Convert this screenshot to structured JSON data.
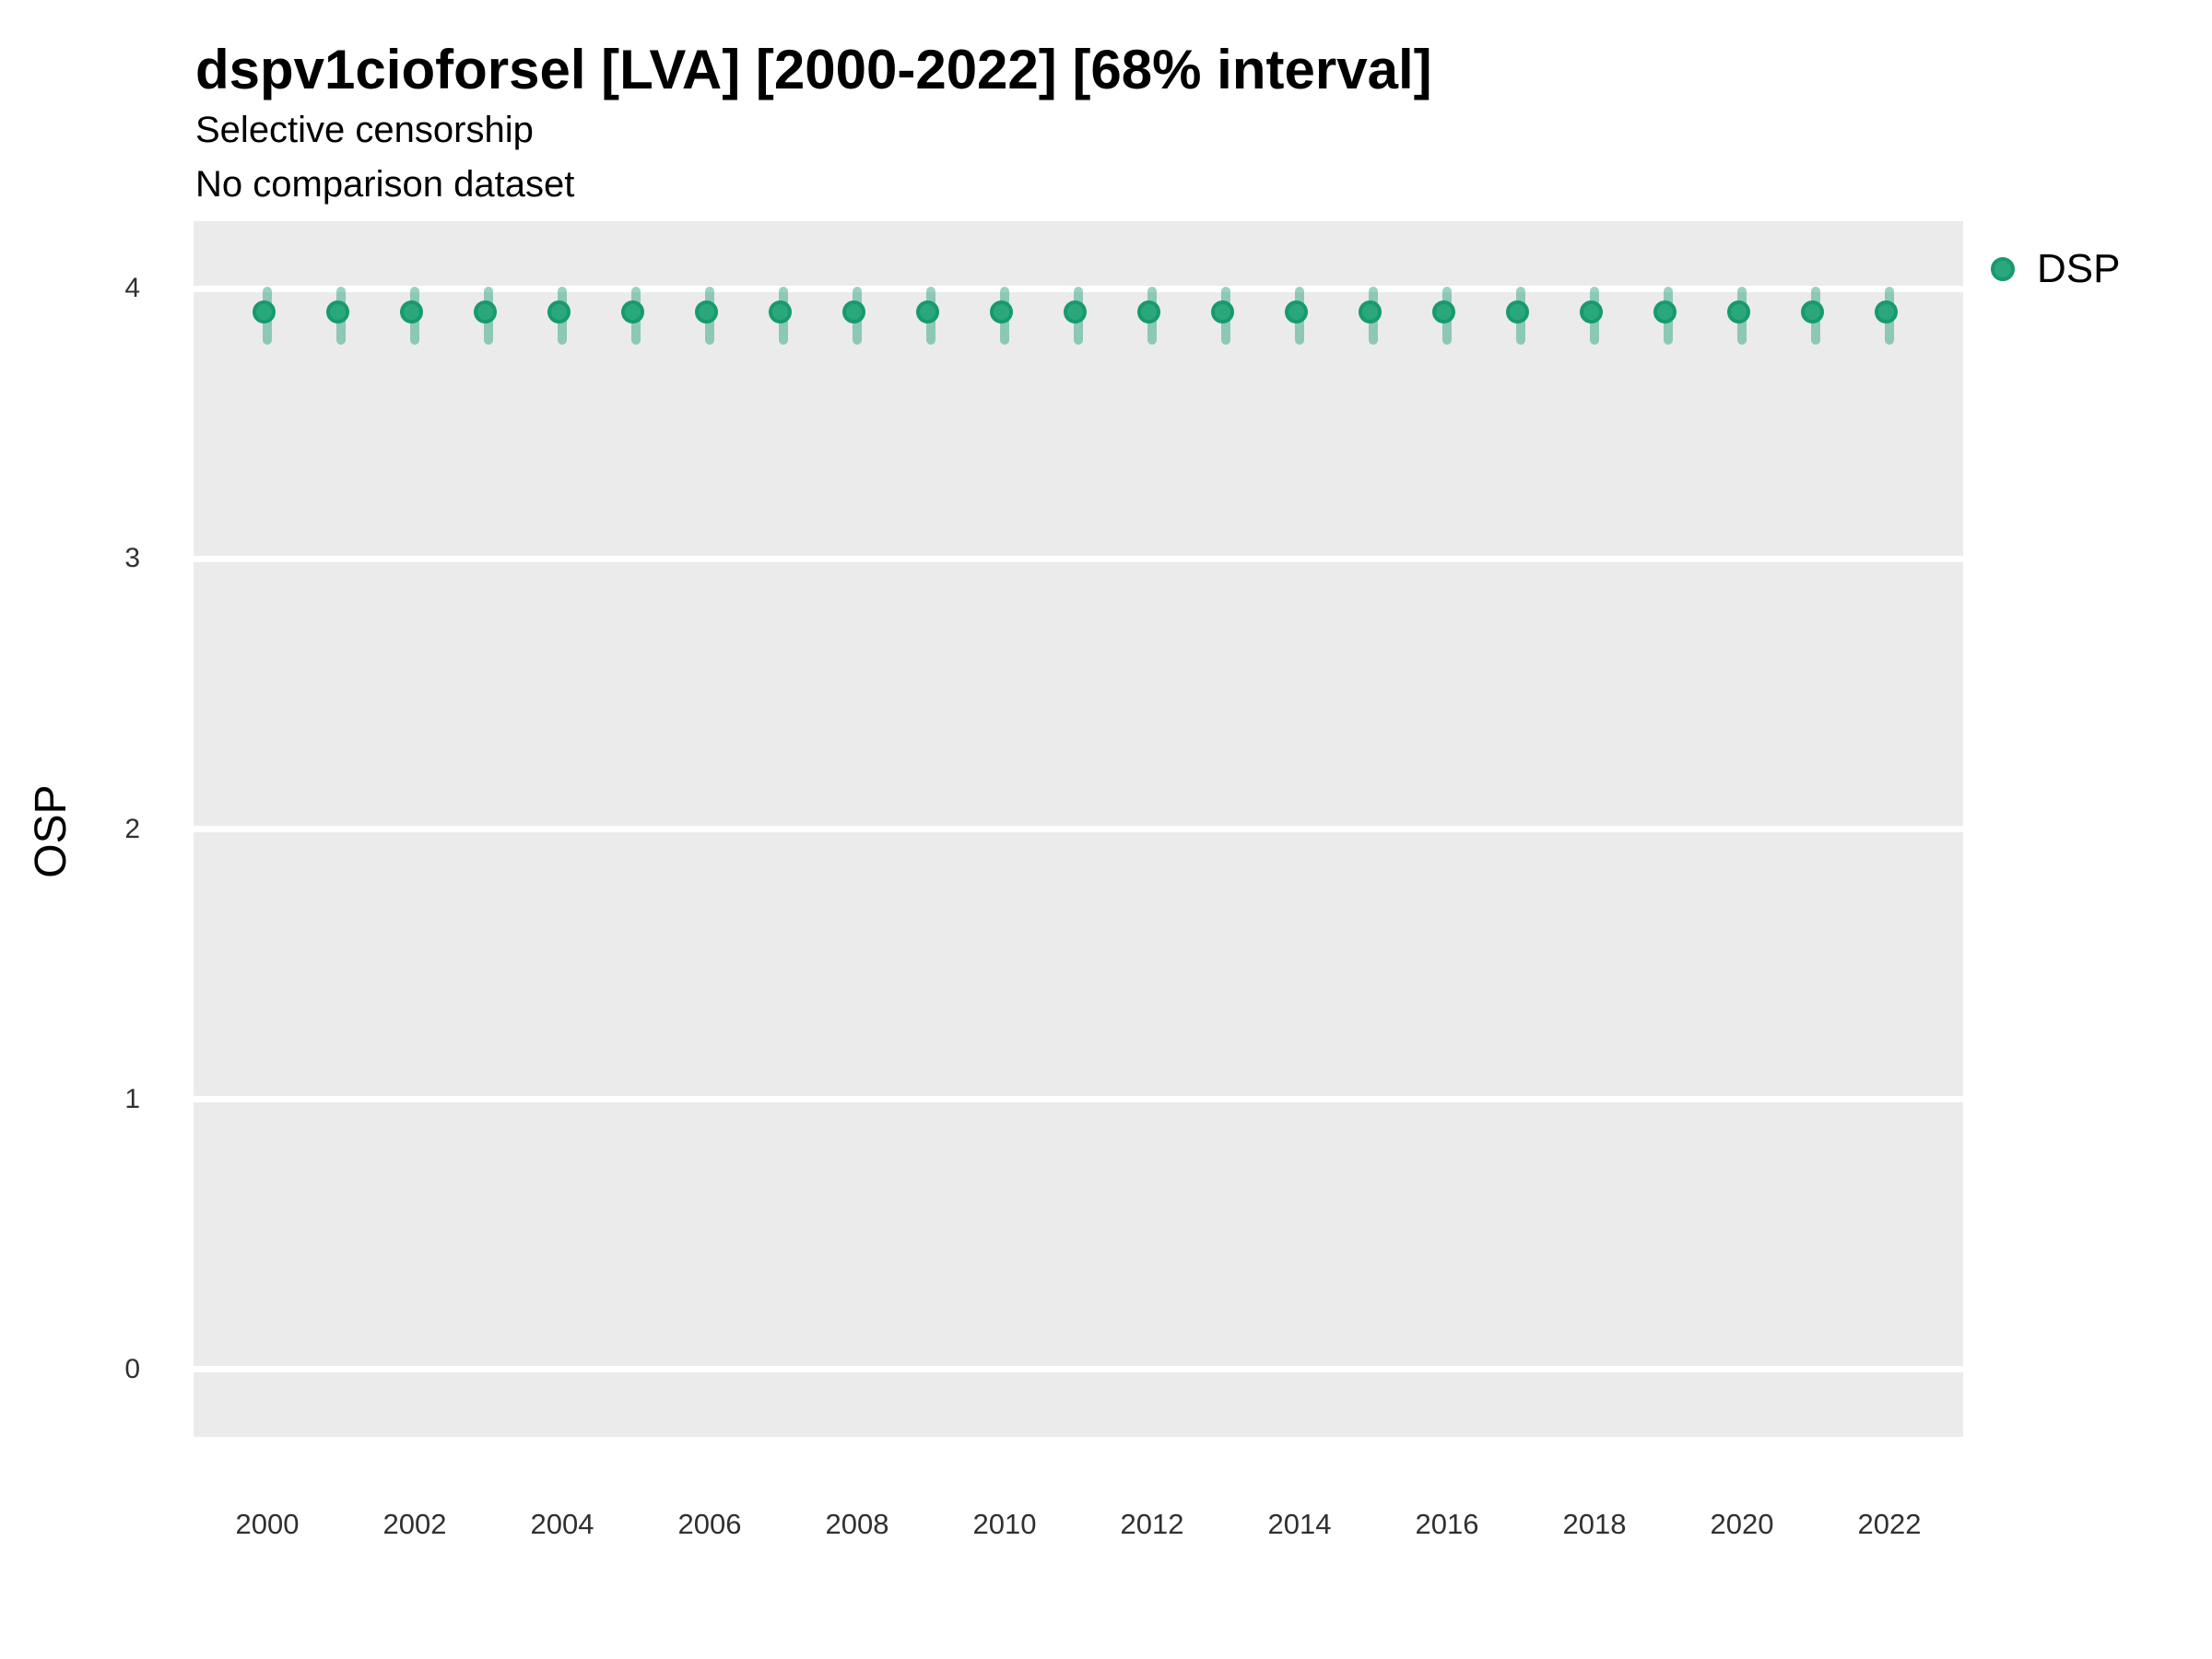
{
  "header": {
    "title": "dspv1cioforsel [LVA] [2000-2022] [68% interval]",
    "subtitle_line1": "Selective censorship",
    "subtitle_line2": "No comparison dataset"
  },
  "legend": {
    "items": [
      {
        "label": "DSP",
        "marker": "filled-circle"
      }
    ],
    "position": "right"
  },
  "colors": {
    "point_fill": "#2aa87c",
    "point_border": "#179a6d",
    "error_bar": "rgba(27,158,119,0.45)",
    "panel_background": "#ebebeb",
    "gridline": "#ffffff",
    "tick_text": "#303030",
    "title_text": "#000000"
  },
  "chart_data": {
    "type": "scatter",
    "title": "dspv1cioforsel [LVA] [2000-2022] [68% interval]",
    "subtitle": [
      "Selective censorship",
      "No comparison dataset"
    ],
    "xlabel": "",
    "ylabel": "OSP",
    "interval_level": "68%",
    "x": [
      2000,
      2001,
      2002,
      2003,
      2004,
      2005,
      2006,
      2007,
      2008,
      2009,
      2010,
      2011,
      2012,
      2013,
      2014,
      2015,
      2016,
      2017,
      2018,
      2019,
      2020,
      2021,
      2022
    ],
    "series": [
      {
        "name": "DSP",
        "values": [
          3.9,
          3.9,
          3.9,
          3.9,
          3.9,
          3.9,
          3.9,
          3.9,
          3.9,
          3.9,
          3.9,
          3.9,
          3.9,
          3.9,
          3.9,
          3.9,
          3.9,
          3.9,
          3.9,
          3.9,
          3.9,
          3.9,
          3.9
        ],
        "lower": [
          3.8,
          3.8,
          3.8,
          3.8,
          3.8,
          3.8,
          3.8,
          3.8,
          3.8,
          3.8,
          3.8,
          3.8,
          3.8,
          3.8,
          3.8,
          3.8,
          3.8,
          3.8,
          3.8,
          3.8,
          3.8,
          3.8,
          3.8
        ],
        "upper": [
          4.0,
          4.0,
          4.0,
          4.0,
          4.0,
          4.0,
          4.0,
          4.0,
          4.0,
          4.0,
          4.0,
          4.0,
          4.0,
          4.0,
          4.0,
          4.0,
          4.0,
          4.0,
          4.0,
          4.0,
          4.0,
          4.0,
          4.0
        ]
      }
    ],
    "xlim": [
      1999,
      2023
    ],
    "ylim": [
      -0.25,
      4.25
    ],
    "yticks": [
      0,
      1,
      2,
      3,
      4
    ],
    "xticks": [
      2000,
      2002,
      2004,
      2006,
      2008,
      2010,
      2012,
      2014,
      2016,
      2018,
      2020,
      2022
    ],
    "grid": "major-horizontal-only",
    "legend_position": "right"
  }
}
